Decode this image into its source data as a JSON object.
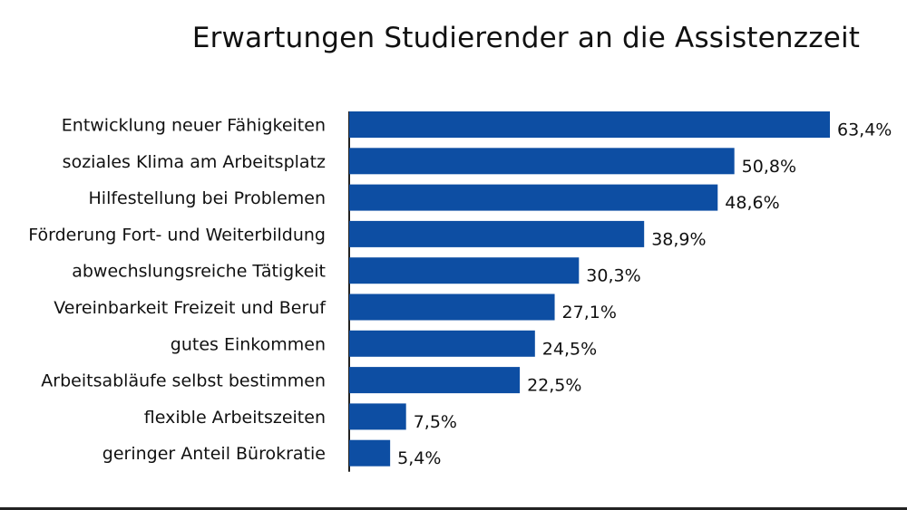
{
  "chart_data": {
    "type": "bar",
    "orientation": "horizontal",
    "title": "Erwartungen Studierender an die Assistenzzeit",
    "categories": [
      "Entwicklung neuer Fähigkeiten",
      "soziales Klima am Arbeitsplatz",
      "Hilfestellung bei Problemen",
      "Förderung Fort- und Weiterbildung",
      "abwechslungsreiche Tätigkeit",
      "Vereinbarkeit Freizeit und Beruf",
      "gutes Einkommen",
      "Arbeitsabläufe selbst bestimmen",
      "flexible Arbeitszeiten",
      "geringer Anteil Bürokratie"
    ],
    "values": [
      63.4,
      50.8,
      48.6,
      38.9,
      30.3,
      27.1,
      24.5,
      22.5,
      7.5,
      5.4
    ],
    "value_labels": [
      "63,4%",
      "50,8%",
      "48,6%",
      "38,9%",
      "30,3%",
      "27,1%",
      "24,5%",
      "22,5%",
      "7,5%",
      "5,4%"
    ],
    "xlim": [
      0,
      63.4
    ],
    "bar_color": "#0d4ea3",
    "grid": false,
    "legend": "none"
  }
}
